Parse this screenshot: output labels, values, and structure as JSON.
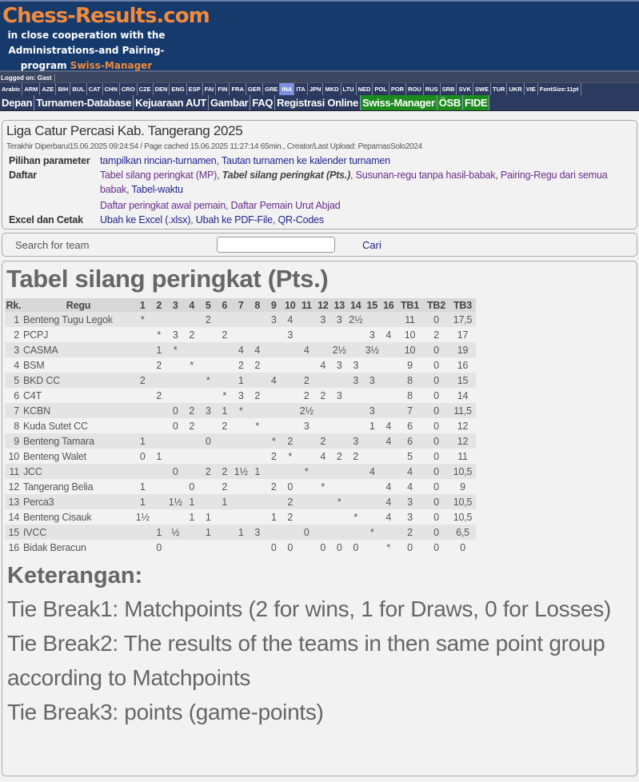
{
  "brand": {
    "title": "Chess-Results.com",
    "line1": "in close cooperation with the",
    "line2": "Administrations-and Pairing-",
    "line3_a": "program ",
    "line3_b": "Swiss-Manager"
  },
  "logged_on": "Logged on: Gast",
  "languages": [
    "Arabic",
    "ARM",
    "AZE",
    "BIH",
    "BUL",
    "CAT",
    "CHN",
    "CRO",
    "CZE",
    "DEN",
    "ENG",
    "ESP",
    "FAI",
    "FIN",
    "FRA",
    "GER",
    "GRE",
    "INA",
    "ITA",
    "JPN",
    "MKD",
    "LTU",
    "NED",
    "POL",
    "POR",
    "ROU",
    "RUS",
    "SRB",
    "SVK",
    "SWE",
    "TUR",
    "UKR",
    "VIE",
    "FontSize:11pt"
  ],
  "selected_language": "INA",
  "nav": [
    {
      "label": "Depan"
    },
    {
      "label": "Turnamen-Database"
    },
    {
      "label": "Kejuaraan AUT"
    },
    {
      "label": "Gambar"
    },
    {
      "label": "FAQ"
    },
    {
      "label": "Registrasi Online"
    },
    {
      "label": "Swiss-Manager",
      "green": true
    },
    {
      "label": "ÖSB",
      "green": true
    },
    {
      "label": "FIDE",
      "green": true
    }
  ],
  "info": {
    "title": "Liga Catur Percasi Kab. Tangerang 2025",
    "updated": "Terakhir Diperbarui15.06.2025 09:24:54 / Page cached 15.06.2025 11:27:14 65min., Creator/Last Upload: PeparnasSolo2024",
    "param_label": "Pilihan parameter",
    "param_links": [
      "tampilkan rincian-turnamen",
      "Tautan turnamen ke kalender turnamen"
    ],
    "list_label": "Daftar",
    "list_links": [
      "Tabel silang peringkat (MP)",
      "Tabel silang peringkat (Pts.)",
      "Susunan-regu tanpa hasil-babak",
      "Pairing-Regu dari semua babak",
      "Tabel-waktu"
    ],
    "list_links2": [
      "Daftar peringkat awal pemain",
      "Daftar Pemain Urut Abjad"
    ],
    "excel_label": "Excel dan Cetak",
    "excel_links": [
      "Ubah ke Excel (.xlsx)",
      "Ubah ke PDF-File",
      "QR-Codes"
    ]
  },
  "search": {
    "label": "Search for team",
    "value": "",
    "button": "Cari"
  },
  "main": {
    "title": "Tabel silang peringkat (Pts.)",
    "headers": [
      "Rk.",
      "Regu",
      "1",
      "2",
      "3",
      "4",
      "5",
      "6",
      "7",
      "8",
      "9",
      "10",
      "11",
      "12",
      "13",
      "14",
      "15",
      "16",
      "TB1",
      "TB2",
      "TB3"
    ],
    "rows": [
      {
        "rk": "1",
        "team": "Benteng Tugu Legok",
        "cells": [
          "*",
          "",
          "",
          "",
          "2",
          "",
          "",
          "",
          "3",
          "4",
          "",
          "3",
          "3",
          "2½",
          "",
          ""
        ],
        "tb1": "11",
        "tb2": "0",
        "tb3": "17,5"
      },
      {
        "rk": "2",
        "team": "PCPJ",
        "cells": [
          "",
          "*",
          "3",
          "2",
          "",
          "2",
          "",
          "",
          "",
          "3",
          "",
          "",
          "",
          "",
          "3",
          "4"
        ],
        "tb1": "10",
        "tb2": "2",
        "tb3": "17"
      },
      {
        "rk": "3",
        "team": "CASMA",
        "cells": [
          "",
          "1",
          "*",
          "",
          "",
          "",
          "4",
          "4",
          "",
          "",
          "4",
          "",
          "2½",
          "",
          "3½",
          ""
        ],
        "tb1": "10",
        "tb2": "0",
        "tb3": "19"
      },
      {
        "rk": "4",
        "team": "BSM",
        "cells": [
          "",
          "2",
          "",
          "*",
          "",
          "",
          "2",
          "2",
          "",
          "",
          "",
          "4",
          "3",
          "3",
          "",
          ""
        ],
        "tb1": "9",
        "tb2": "0",
        "tb3": "16"
      },
      {
        "rk": "5",
        "team": "BKD CC",
        "cells": [
          "2",
          "",
          "",
          "",
          "*",
          "",
          "1",
          "",
          "4",
          "",
          "2",
          "",
          "",
          "3",
          "3",
          ""
        ],
        "tb1": "8",
        "tb2": "0",
        "tb3": "15"
      },
      {
        "rk": "6",
        "team": "C4T",
        "cells": [
          "",
          "2",
          "",
          "",
          "",
          "*",
          "3",
          "2",
          "",
          "",
          "2",
          "2",
          "3",
          "",
          "",
          ""
        ],
        "tb1": "8",
        "tb2": "0",
        "tb3": "14"
      },
      {
        "rk": "7",
        "team": "KCBN",
        "cells": [
          "",
          "",
          "0",
          "2",
          "3",
          "1",
          "*",
          "",
          "",
          "",
          "2½",
          "",
          "",
          "",
          "3",
          ""
        ],
        "tb1": "7",
        "tb2": "0",
        "tb3": "11,5"
      },
      {
        "rk": "8",
        "team": "Kuda Sutet CC",
        "cells": [
          "",
          "",
          "0",
          "2",
          "",
          "2",
          "",
          "*",
          "",
          "",
          "3",
          "",
          "",
          "",
          "1",
          "4"
        ],
        "tb1": "6",
        "tb2": "0",
        "tb3": "12"
      },
      {
        "rk": "9",
        "team": "Benteng Tamara",
        "cells": [
          "1",
          "",
          "",
          "",
          "0",
          "",
          "",
          "",
          "*",
          "2",
          "",
          "2",
          "",
          "3",
          "",
          "4"
        ],
        "tb1": "6",
        "tb2": "0",
        "tb3": "12"
      },
      {
        "rk": "10",
        "team": "Benteng Walet",
        "cells": [
          "0",
          "1",
          "",
          "",
          "",
          "",
          "",
          "",
          "2",
          "*",
          "",
          "4",
          "2",
          "2",
          "",
          ""
        ],
        "tb1": "5",
        "tb2": "0",
        "tb3": "11"
      },
      {
        "rk": "11",
        "team": "JCC",
        "cells": [
          "",
          "",
          "0",
          "",
          "2",
          "2",
          "1½",
          "1",
          "",
          "",
          "*",
          "",
          "",
          "",
          "4",
          ""
        ],
        "tb1": "4",
        "tb2": "0",
        "tb3": "10,5"
      },
      {
        "rk": "12",
        "team": "Tangerang Belia",
        "cells": [
          "1",
          "",
          "",
          "0",
          "",
          "2",
          "",
          "",
          "2",
          "0",
          "",
          "*",
          "",
          "",
          "",
          "4"
        ],
        "tb1": "4",
        "tb2": "0",
        "tb3": "9"
      },
      {
        "rk": "13",
        "team": "Perca3",
        "cells": [
          "1",
          "",
          "1½",
          "1",
          "",
          "1",
          "",
          "",
          "",
          "2",
          "",
          "",
          "*",
          "",
          "",
          "4"
        ],
        "tb1": "3",
        "tb2": "0",
        "tb3": "10,5"
      },
      {
        "rk": "14",
        "team": "Benteng Cisauk",
        "cells": [
          "1½",
          "",
          "",
          "1",
          "1",
          "",
          "",
          "",
          "1",
          "2",
          "",
          "",
          "",
          "*",
          "",
          "4"
        ],
        "tb1": "3",
        "tb2": "0",
        "tb3": "10,5"
      },
      {
        "rk": "15",
        "team": "IVCC",
        "cells": [
          "",
          "1",
          "½",
          "",
          "1",
          "",
          "1",
          "3",
          "",
          "",
          "0",
          "",
          "",
          "",
          "*",
          ""
        ],
        "tb1": "2",
        "tb2": "0",
        "tb3": "6,5"
      },
      {
        "rk": "16",
        "team": "Bidak Beracun",
        "cells": [
          "",
          "0",
          "",
          "",
          "",
          "",
          "",
          "",
          "0",
          "0",
          "",
          "0",
          "0",
          "0",
          "",
          "*"
        ],
        "tb1": "0",
        "tb2": "0",
        "tb3": "0"
      }
    ]
  },
  "legend": {
    "title": "Keterangan:",
    "lines": [
      "Tie Break1: Matchpoints (2 for wins, 1 for Draws, 0 for Losses)",
      "Tie Break2: The results of the teams in then same point group according to Matchpoints",
      "Tie Break3: points (game-points)"
    ]
  }
}
